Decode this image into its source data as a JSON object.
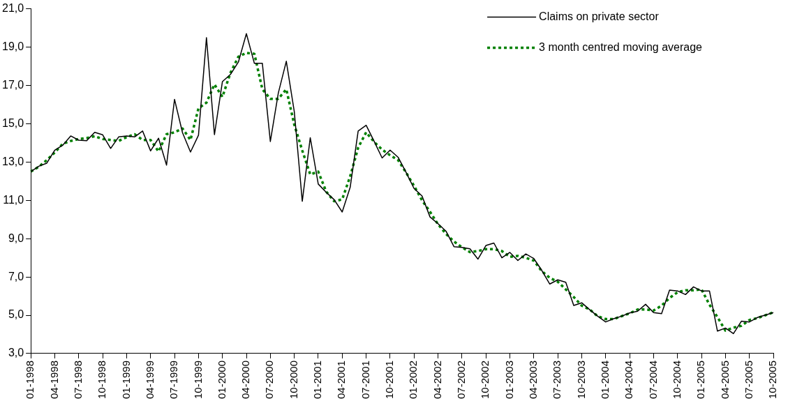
{
  "chart_data": {
    "type": "line",
    "categories": [
      "01-1998",
      null,
      null,
      "04-1998",
      null,
      null,
      "07-1998",
      null,
      null,
      "10-1998",
      null,
      null,
      "01-1999",
      null,
      null,
      "04-1999",
      null,
      null,
      "07-1999",
      null,
      null,
      "10-1999",
      null,
      null,
      "01-2000",
      null,
      null,
      "04-2000",
      null,
      null,
      "07-2000",
      null,
      null,
      "10-2000",
      null,
      null,
      "01-2001",
      null,
      null,
      "04-2001",
      null,
      null,
      "07-2001",
      null,
      null,
      "10-2001",
      null,
      null,
      "01-2002",
      null,
      null,
      "04-2002",
      null,
      null,
      "07-2002",
      null,
      null,
      "10-2002",
      null,
      null,
      "01-2003",
      null,
      null,
      "04-2003",
      null,
      null,
      "07-2003",
      null,
      null,
      "10-2003",
      null,
      null,
      "01-2004",
      null,
      null,
      "04-2004",
      null,
      null,
      "07-2004",
      null,
      null,
      "10-2004",
      null,
      null,
      "01-2005",
      null,
      null,
      "04-2005",
      null,
      null,
      "07-2005",
      null,
      null,
      "10-2005"
    ],
    "series": [
      {
        "name": "Claims on private sector",
        "color": "#000000",
        "line_style": "solid",
        "values": [
          12.5,
          12.78,
          12.94,
          13.62,
          13.88,
          14.36,
          14.14,
          14.11,
          14.55,
          14.42,
          13.71,
          14.31,
          14.36,
          14.31,
          14.62,
          13.58,
          14.24,
          12.84,
          16.27,
          14.53,
          13.52,
          14.4,
          19.49,
          14.43,
          17.2,
          17.57,
          18.22,
          19.7,
          18.15,
          18.15,
          14.07,
          16.6,
          18.26,
          15.63,
          10.95,
          14.27,
          11.85,
          11.42,
          11.03,
          10.39,
          11.68,
          14.62,
          14.92,
          14.08,
          13.21,
          13.62,
          13.25,
          12.46,
          11.62,
          11.23,
          10.13,
          9.78,
          9.39,
          8.58,
          8.54,
          8.47,
          7.93,
          8.64,
          8.77,
          8.0,
          8.28,
          7.86,
          8.2,
          7.96,
          7.34,
          6.63,
          6.85,
          6.72,
          5.51,
          5.65,
          5.29,
          4.95,
          4.65,
          4.82,
          4.95,
          5.12,
          5.21,
          5.57,
          5.14,
          5.08,
          6.31,
          6.27,
          6.08,
          6.48,
          6.27,
          6.27,
          4.17,
          4.33,
          4.04,
          4.69,
          4.65,
          4.88,
          5.01,
          5.14
        ]
      },
      {
        "name": "3 month centred moving average",
        "color": "#008000",
        "line_style": "dotted",
        "values": [
          12.5,
          12.75,
          13.1,
          13.5,
          13.95,
          14.1,
          14.2,
          14.25,
          14.35,
          14.2,
          14.15,
          14.1,
          14.3,
          14.45,
          14.15,
          14.15,
          13.55,
          14.45,
          14.55,
          14.75,
          14.15,
          15.8,
          16.1,
          17.05,
          16.4,
          17.65,
          18.5,
          18.7,
          18.65,
          16.8,
          16.3,
          16.3,
          16.8,
          14.95,
          13.6,
          12.35,
          12.5,
          11.45,
          10.95,
          11.05,
          12.25,
          13.75,
          14.55,
          14.05,
          13.65,
          13.35,
          13.1,
          12.45,
          11.75,
          11.0,
          10.4,
          9.75,
          9.25,
          8.85,
          8.55,
          8.3,
          8.35,
          8.45,
          8.45,
          8.35,
          8.05,
          8.1,
          8.0,
          7.85,
          7.3,
          6.95,
          6.75,
          6.35,
          5.95,
          5.5,
          5.3,
          4.95,
          4.8,
          4.8,
          4.95,
          5.1,
          5.3,
          5.3,
          5.25,
          5.5,
          5.9,
          6.2,
          6.3,
          6.3,
          6.35,
          5.55,
          4.9,
          4.2,
          4.35,
          4.45,
          4.75,
          4.85,
          5.0,
          5.15
        ]
      }
    ],
    "ylim": [
      3,
      21
    ],
    "yticks": [
      {
        "value": 3,
        "label": "3,0"
      },
      {
        "value": 5,
        "label": "5,0"
      },
      {
        "value": 7,
        "label": "7,0"
      },
      {
        "value": 9,
        "label": "9,0"
      },
      {
        "value": 11,
        "label": "11,0"
      },
      {
        "value": 13,
        "label": "13,0"
      },
      {
        "value": 15,
        "label": "15,0"
      },
      {
        "value": 17,
        "label": "17,0"
      },
      {
        "value": 19,
        "label": "19,0"
      },
      {
        "value": 21,
        "label": "21,0"
      }
    ],
    "grid": false,
    "legend": "top right",
    "marker": "none"
  }
}
